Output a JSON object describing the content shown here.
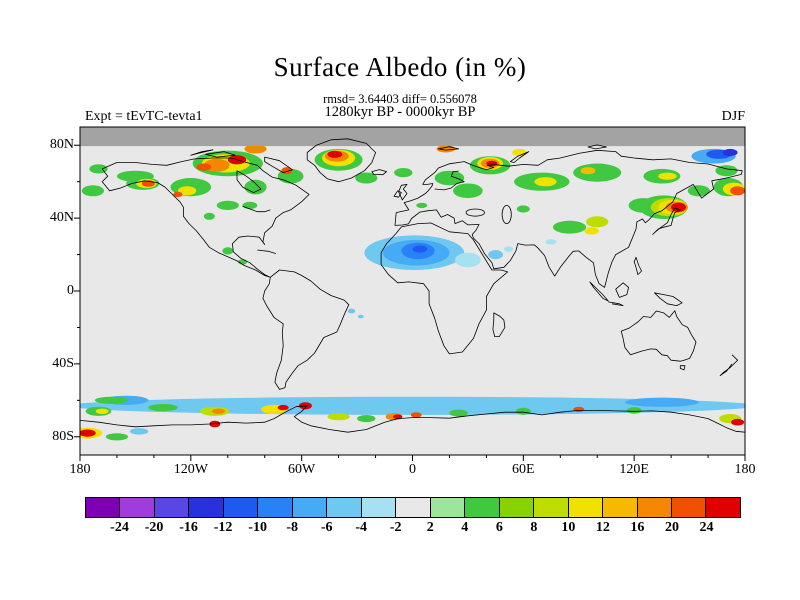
{
  "header": {
    "title": "Surface Albedo (in %)",
    "stats": "rmsd= 3.64403 diff= 0.556078",
    "period": "1280kyr BP - 0000kyr BP",
    "expt": "Expt = tEvTC-tevta1",
    "season": "DJF"
  },
  "map": {
    "background": "#e8e8e8",
    "polar_band_color": "#a3a3a3",
    "frame_color": "#000000",
    "lat_ticks": [
      {
        "label": "80N",
        "lat": 80
      },
      {
        "label": "40N",
        "lat": 40
      },
      {
        "label": "0",
        "lat": 0
      },
      {
        "label": "40S",
        "lat": -40
      },
      {
        "label": "80S",
        "lat": -80
      }
    ],
    "lon_ticks": [
      {
        "label": "180",
        "lon": -180
      },
      {
        "label": "120W",
        "lon": -120
      },
      {
        "label": "60W",
        "lon": -60
      },
      {
        "label": "0",
        "lon": 0
      },
      {
        "label": "60E",
        "lon": 60
      },
      {
        "label": "120E",
        "lon": 120
      },
      {
        "label": "180",
        "lon": 180
      }
    ]
  },
  "colorbar": {
    "labels": [
      "-24",
      "-20",
      "-16",
      "-12",
      "-10",
      "-8",
      "-6",
      "-4",
      "-2",
      "2",
      "4",
      "6",
      "8",
      "10",
      "12",
      "16",
      "20",
      "24"
    ],
    "levels": [
      -24,
      -20,
      -16,
      -12,
      -10,
      -8,
      -6,
      -4,
      -2,
      2,
      4,
      6,
      8,
      10,
      12,
      16,
      20,
      24
    ],
    "colors": [
      "#7d00b4",
      "#a03cdc",
      "#5a46e6",
      "#2832dc",
      "#1e5af0",
      "#2882f5",
      "#46aaf5",
      "#6ec8f0",
      "#a5e1f0",
      "#e8e8e8",
      "#9ce69c",
      "#41c841",
      "#87d200",
      "#bedc00",
      "#f0e100",
      "#f5b900",
      "#f58700",
      "#f05000",
      "#e10000"
    ]
  },
  "chart_data": {
    "type": "heatmap",
    "title": "Surface Albedo (in %)",
    "subtitle_stats": "rmsd= 3.64403 diff= 0.556078",
    "period": "1280kyr BP - 0000kyr BP",
    "experiment": "tEvTC-tevta1",
    "season": "DJF",
    "rmsd": 3.64403,
    "diff": 0.556078,
    "projection": "equirectangular",
    "lon_range": [
      -180,
      180
    ],
    "lat_range": [
      -90,
      90
    ],
    "lon_tick_labels": [
      "180",
      "120W",
      "60W",
      "0",
      "60E",
      "120E",
      "180"
    ],
    "lat_tick_labels": [
      "80N",
      "40N",
      "0",
      "40S",
      "80S"
    ],
    "contour_levels": [
      -24,
      -20,
      -16,
      -12,
      -10,
      -8,
      -6,
      -4,
      -2,
      2,
      4,
      6,
      8,
      10,
      12,
      16,
      20,
      24
    ],
    "units": "%",
    "anomalies": [
      {
        "lon": -173,
        "lat": 55,
        "rx": 6,
        "ry": 3,
        "v": 5
      },
      {
        "lon": -170,
        "lat": 67,
        "rx": 5,
        "ry": 2.5,
        "v": 5
      },
      {
        "lon": -150,
        "lat": 63,
        "rx": 10,
        "ry": 3,
        "v": 5
      },
      {
        "lon": -146,
        "lat": 59,
        "rx": 9,
        "ry": 3.5,
        "v": 5
      },
      {
        "lon": -144,
        "lat": 59,
        "rx": 5.5,
        "ry": 2.5,
        "v": 11
      },
      {
        "lon": -143,
        "lat": 59,
        "rx": 3.5,
        "ry": 1.8,
        "v": 22
      },
      {
        "lon": -120,
        "lat": 57,
        "rx": 11,
        "ry": 5,
        "v": 5
      },
      {
        "lon": -122,
        "lat": 55,
        "rx": 5,
        "ry": 2.5,
        "v": 11
      },
      {
        "lon": -127,
        "lat": 53,
        "rx": 2.5,
        "ry": 1.5,
        "v": 22
      },
      {
        "lon": -110,
        "lat": 41,
        "rx": 3,
        "ry": 2,
        "v": 5
      },
      {
        "lon": -100,
        "lat": 47,
        "rx": 6,
        "ry": 2.5,
        "v": 5
      },
      {
        "lon": -88,
        "lat": 47,
        "rx": 4,
        "ry": 2,
        "v": 5
      },
      {
        "lon": -100,
        "lat": 70,
        "rx": 19,
        "ry": 7,
        "v": 5
      },
      {
        "lon": -101,
        "lat": 70,
        "rx": 13,
        "ry": 5,
        "v": 11
      },
      {
        "lon": -106,
        "lat": 69,
        "rx": 7,
        "ry": 3.5,
        "v": 17
      },
      {
        "lon": -95,
        "lat": 72,
        "rx": 5,
        "ry": 2.5,
        "v": 25
      },
      {
        "lon": -113,
        "lat": 68,
        "rx": 4,
        "ry": 2,
        "v": 22
      },
      {
        "lon": -85,
        "lat": 78,
        "rx": 6,
        "ry": 2.5,
        "v": 17
      },
      {
        "lon": -85,
        "lat": 57,
        "rx": 6,
        "ry": 4,
        "v": 5
      },
      {
        "lon": -66,
        "lat": 63,
        "rx": 7,
        "ry": 4,
        "v": 5
      },
      {
        "lon": -68,
        "lat": 66,
        "rx": 3,
        "ry": 2,
        "v": 22
      },
      {
        "lon": -40,
        "lat": 72,
        "rx": 13,
        "ry": 6,
        "v": 5
      },
      {
        "lon": -40,
        "lat": 73,
        "rx": 9,
        "ry": 4.5,
        "v": 11
      },
      {
        "lon": -41,
        "lat": 74,
        "rx": 6.5,
        "ry": 3,
        "v": 17
      },
      {
        "lon": -42,
        "lat": 75,
        "rx": 4,
        "ry": 2,
        "v": 25
      },
      {
        "lon": -25,
        "lat": 62,
        "rx": 6,
        "ry": 3,
        "v": 5
      },
      {
        "lon": -5,
        "lat": 65,
        "rx": 5,
        "ry": 2.5,
        "v": 5
      },
      {
        "lon": 20,
        "lat": 62,
        "rx": 8,
        "ry": 4,
        "v": 5
      },
      {
        "lon": 30,
        "lat": 55,
        "rx": 8,
        "ry": 4,
        "v": 5
      },
      {
        "lon": 5,
        "lat": 47,
        "rx": 3,
        "ry": 1.5,
        "v": 5
      },
      {
        "lon": 42,
        "lat": 69,
        "rx": 11,
        "ry": 5,
        "v": 5
      },
      {
        "lon": 42,
        "lat": 70,
        "rx": 7,
        "ry": 3.5,
        "v": 11
      },
      {
        "lon": 42,
        "lat": 70,
        "rx": 5,
        "ry": 2.5,
        "v": 17
      },
      {
        "lon": 43,
        "lat": 70,
        "rx": 3,
        "ry": 1.5,
        "v": 25
      },
      {
        "lon": 18,
        "lat": 78,
        "rx": 5,
        "ry": 2,
        "v": 17
      },
      {
        "lon": 58,
        "lat": 76,
        "rx": 4,
        "ry": 2,
        "v": 11
      },
      {
        "lon": 70,
        "lat": 60,
        "rx": 15,
        "ry": 5,
        "v": 5
      },
      {
        "lon": 72,
        "lat": 60,
        "rx": 6,
        "ry": 2.5,
        "v": 11
      },
      {
        "lon": 60,
        "lat": 45,
        "rx": 3.5,
        "ry": 2,
        "v": 5
      },
      {
        "lon": 100,
        "lat": 65,
        "rx": 13,
        "ry": 5,
        "v": 5
      },
      {
        "lon": 95,
        "lat": 66,
        "rx": 4,
        "ry": 2,
        "v": 15
      },
      {
        "lon": 135,
        "lat": 63,
        "rx": 10,
        "ry": 4,
        "v": 5
      },
      {
        "lon": 138,
        "lat": 63,
        "rx": 5,
        "ry": 2,
        "v": 11
      },
      {
        "lon": 163,
        "lat": 74,
        "rx": 12,
        "ry": 4,
        "v": -7
      },
      {
        "lon": 166,
        "lat": 75,
        "rx": 7,
        "ry": 2.5,
        "v": -11
      },
      {
        "lon": 172,
        "lat": 76,
        "rx": 4,
        "ry": 2,
        "v": -13
      },
      {
        "lon": 170,
        "lat": 66,
        "rx": 6,
        "ry": 3,
        "v": 5
      },
      {
        "lon": 171,
        "lat": 57,
        "rx": 8,
        "ry": 5,
        "v": 5
      },
      {
        "lon": 174,
        "lat": 56,
        "rx": 6,
        "ry": 3.5,
        "v": 11
      },
      {
        "lon": 176,
        "lat": 55,
        "rx": 4,
        "ry": 2.5,
        "v": 22
      },
      {
        "lon": 155,
        "lat": 55,
        "rx": 6,
        "ry": 3,
        "v": 5
      },
      {
        "lon": 125,
        "lat": 47,
        "rx": 8,
        "ry": 4,
        "v": 5
      },
      {
        "lon": 136,
        "lat": 46,
        "rx": 13,
        "ry": 6.5,
        "v": 5
      },
      {
        "lon": 139,
        "lat": 46,
        "rx": 10,
        "ry": 5,
        "v": 9
      },
      {
        "lon": 141,
        "lat": 46,
        "rx": 8,
        "ry": 4,
        "v": 11
      },
      {
        "lon": 143,
        "lat": 46,
        "rx": 6,
        "ry": 3,
        "v": 17
      },
      {
        "lon": 144,
        "lat": 46,
        "rx": 4,
        "ry": 2.5,
        "v": 25
      },
      {
        "lon": 85,
        "lat": 35,
        "rx": 9,
        "ry": 3.5,
        "v": 5
      },
      {
        "lon": 97,
        "lat": 33,
        "rx": 4,
        "ry": 2,
        "v": 11
      },
      {
        "lon": 100,
        "lat": 38,
        "rx": 6,
        "ry": 3,
        "v": 9
      },
      {
        "lon": 1,
        "lat": 21,
        "rx": 27,
        "ry": 9.5,
        "v": -5
      },
      {
        "lon": 2,
        "lat": 21,
        "rx": 18,
        "ry": 7,
        "v": -7
      },
      {
        "lon": 3,
        "lat": 22,
        "rx": 9,
        "ry": 4.5,
        "v": -9
      },
      {
        "lon": 4,
        "lat": 23,
        "rx": 4,
        "ry": 2,
        "v": -11
      },
      {
        "lon": 30,
        "lat": 17,
        "rx": 7,
        "ry": 4,
        "v": -3
      },
      {
        "lon": 45,
        "lat": 20,
        "rx": 4,
        "ry": 2.5,
        "v": -5
      },
      {
        "lon": 52,
        "lat": 23,
        "rx": 2.5,
        "ry": 1.5,
        "v": -3
      },
      {
        "lon": 75,
        "lat": 27,
        "rx": 3,
        "ry": 1.5,
        "v": -3
      },
      {
        "lon": -100,
        "lat": 22,
        "rx": 3,
        "ry": 2,
        "v": 5
      },
      {
        "lon": -92,
        "lat": 16,
        "rx": 2.5,
        "ry": 1.5,
        "v": 5
      },
      {
        "lon": -33,
        "lat": -11,
        "rx": 2,
        "ry": 1.3,
        "v": -5
      },
      {
        "lon": -28,
        "lat": -14,
        "rx": 1.6,
        "ry": 1,
        "v": -5
      },
      {
        "lon": 0,
        "lat": -63,
        "rx": 186,
        "ry": 5,
        "v": -5
      },
      {
        "lon": 135,
        "lat": -61,
        "rx": 20,
        "ry": 2.5,
        "v": -7
      },
      {
        "lon": -155,
        "lat": -60,
        "rx": 12,
        "ry": 2.5,
        "v": -7
      },
      {
        "lon": -163,
        "lat": -60,
        "rx": 9,
        "ry": 2,
        "v": 5
      },
      {
        "lon": -170,
        "lat": -66,
        "rx": 7,
        "ry": 2.5,
        "v": 5
      },
      {
        "lon": -168,
        "lat": -66,
        "rx": 3.5,
        "ry": 1.5,
        "v": 11
      },
      {
        "lon": -135,
        "lat": -64,
        "rx": 8,
        "ry": 2,
        "v": 5
      },
      {
        "lon": -107,
        "lat": -66,
        "rx": 8,
        "ry": 2.5,
        "v": 9
      },
      {
        "lon": -105,
        "lat": -66,
        "rx": 3.5,
        "ry": 1.5,
        "v": 17
      },
      {
        "lon": -107,
        "lat": -73,
        "rx": 3,
        "ry": 1.8,
        "v": 25
      },
      {
        "lon": -75,
        "lat": -65,
        "rx": 7,
        "ry": 2.5,
        "v": 11
      },
      {
        "lon": -70,
        "lat": -64,
        "rx": 3,
        "ry": 1.5,
        "v": 25
      },
      {
        "lon": -58,
        "lat": -63,
        "rx": 3.5,
        "ry": 2,
        "v": 25
      },
      {
        "lon": -40,
        "lat": -69,
        "rx": 6,
        "ry": 2,
        "v": 9
      },
      {
        "lon": -25,
        "lat": -70,
        "rx": 5,
        "ry": 2,
        "v": 5
      },
      {
        "lon": -10,
        "lat": -69,
        "rx": 4.5,
        "ry": 2,
        "v": 17
      },
      {
        "lon": -8,
        "lat": -69,
        "rx": 2.5,
        "ry": 1.2,
        "v": 25
      },
      {
        "lon": 2,
        "lat": -68,
        "rx": 3,
        "ry": 1.5,
        "v": 22
      },
      {
        "lon": 25,
        "lat": -67,
        "rx": 5,
        "ry": 2,
        "v": 5
      },
      {
        "lon": 60,
        "lat": -66,
        "rx": 4,
        "ry": 2,
        "v": 5
      },
      {
        "lon": 90,
        "lat": -65,
        "rx": 3,
        "ry": 1.5,
        "v": 22
      },
      {
        "lon": 120,
        "lat": -65.5,
        "rx": 4,
        "ry": 1.8,
        "v": 5
      },
      {
        "lon": 172,
        "lat": -70,
        "rx": 6,
        "ry": 2.5,
        "v": 9
      },
      {
        "lon": 176,
        "lat": -72,
        "rx": 3.5,
        "ry": 1.8,
        "v": 25
      },
      {
        "lon": -176,
        "lat": -78,
        "rx": 8,
        "ry": 3,
        "v": 11
      },
      {
        "lon": -176,
        "lat": -78,
        "rx": 4.5,
        "ry": 2,
        "v": 25
      },
      {
        "lon": -160,
        "lat": -80,
        "rx": 6,
        "ry": 2,
        "v": 5
      },
      {
        "lon": -148,
        "lat": -77,
        "rx": 5,
        "ry": 1.8,
        "v": -5
      }
    ]
  }
}
